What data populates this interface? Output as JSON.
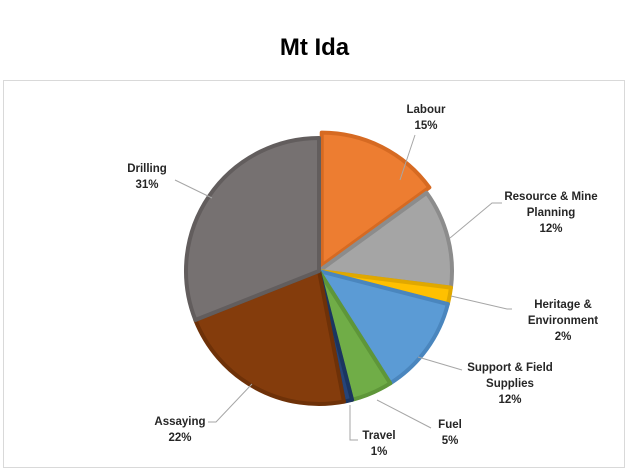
{
  "chart_data": {
    "type": "pie",
    "title": "Mt Ida",
    "slices": [
      {
        "label": [
          "Labour"
        ],
        "value": 15,
        "pct": "15%",
        "color": "#ED7D31",
        "edge": "#D66A22"
      },
      {
        "label": [
          "Resource & Mine",
          "Planning"
        ],
        "value": 12,
        "pct": "12%",
        "color": "#A5A5A5",
        "edge": "#8C8C8C"
      },
      {
        "label": [
          "Heritage &",
          "Environment"
        ],
        "value": 2,
        "pct": "2%",
        "color": "#FFC000",
        "edge": "#E0A800"
      },
      {
        "label": [
          "Support & Field",
          "Supplies"
        ],
        "value": 12,
        "pct": "12%",
        "color": "#5B9BD5",
        "edge": "#4A86BE"
      },
      {
        "label": [
          "Fuel"
        ],
        "value": 5,
        "pct": "5%",
        "color": "#70AD47",
        "edge": "#5E9639"
      },
      {
        "label": [
          "Travel"
        ],
        "value": 1,
        "pct": "1%",
        "color": "#264478",
        "edge": "#1B3560"
      },
      {
        "label": [
          "Assaying"
        ],
        "value": 22,
        "pct": "22%",
        "color": "#843C0C",
        "edge": "#6E3108"
      },
      {
        "label": [
          "Drilling"
        ],
        "value": 31,
        "pct": "31%",
        "color": "#767171",
        "edge": "#625D5D"
      }
    ]
  }
}
